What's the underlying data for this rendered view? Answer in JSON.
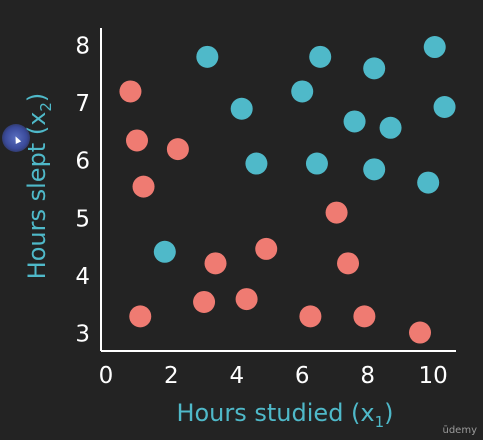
{
  "chart_data": {
    "type": "scatter",
    "xlabel": "Hours studied (x",
    "xlabel_sub": "1",
    "ylabel": "Hours slept (x",
    "ylabel_sub": "2",
    "xlim": [
      -0.15,
      10.7
    ],
    "ylim": [
      2.7,
      8.3
    ],
    "x_ticks": [
      "0",
      "2",
      "4",
      "6",
      "8",
      "10"
    ],
    "y_ticks": [
      "3",
      "4",
      "5",
      "6",
      "7",
      "8"
    ],
    "grid": false,
    "series": [
      {
        "color": "#ef7b72",
        "points": [
          [
            0.75,
            7.2
          ],
          [
            0.95,
            6.35
          ],
          [
            1.15,
            5.55
          ],
          [
            2.2,
            6.2
          ],
          [
            1.05,
            3.3
          ],
          [
            3.0,
            3.55
          ],
          [
            3.35,
            4.22
          ],
          [
            4.3,
            3.6
          ],
          [
            4.9,
            4.47
          ],
          [
            6.25,
            3.3
          ],
          [
            7.05,
            5.1
          ],
          [
            7.4,
            4.22
          ],
          [
            7.9,
            3.3
          ],
          [
            9.6,
            3.02
          ]
        ]
      },
      {
        "color": "#4fb9c9",
        "points": [
          [
            3.1,
            7.8
          ],
          [
            6.55,
            7.8
          ],
          [
            8.2,
            7.6
          ],
          [
            10.05,
            7.97
          ],
          [
            6.0,
            7.2
          ],
          [
            4.15,
            6.9
          ],
          [
            10.35,
            6.93
          ],
          [
            7.6,
            6.68
          ],
          [
            8.7,
            6.57
          ],
          [
            4.6,
            5.95
          ],
          [
            6.45,
            5.95
          ],
          [
            8.2,
            5.85
          ],
          [
            9.85,
            5.62
          ],
          [
            1.8,
            4.42
          ]
        ]
      }
    ]
  },
  "watermark": "ūdemy"
}
